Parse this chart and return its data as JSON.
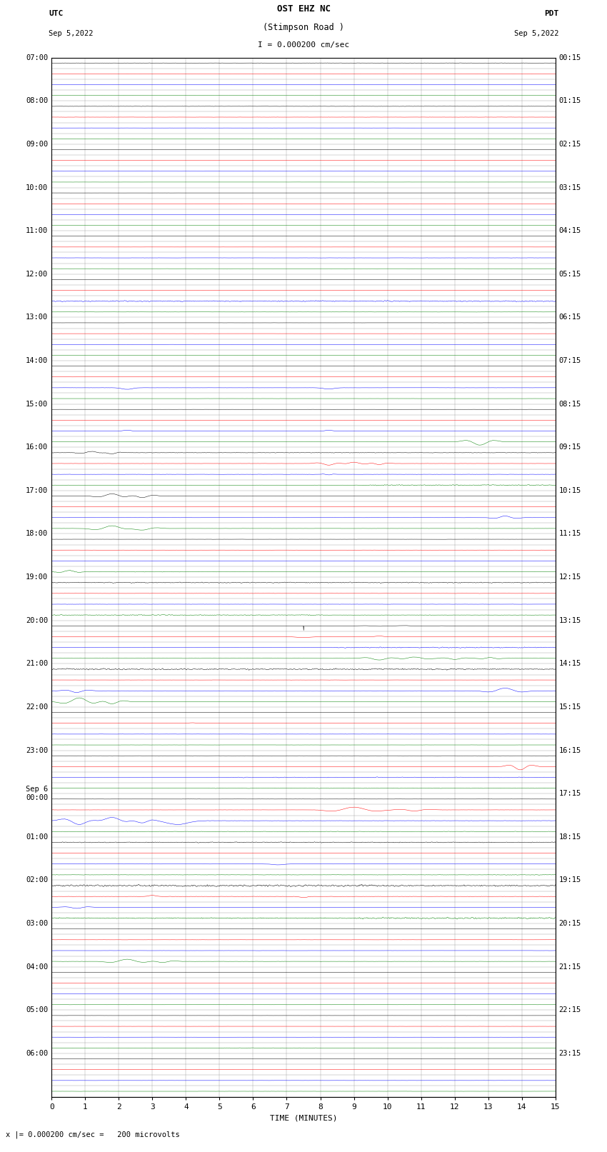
{
  "title_line1": "OST EHZ NC",
  "title_line2": "(Stimpson Road )",
  "title_line3": "I = 0.000200 cm/sec",
  "left_label_top": "UTC",
  "left_label_date": "Sep 5,2022",
  "right_label_top": "PDT",
  "right_label_date": "Sep 5,2022",
  "xlabel": "TIME (MINUTES)",
  "bottom_note": "x |= 0.000200 cm/sec =   200 microvolts",
  "utc_labels": [
    "07:00",
    "08:00",
    "09:00",
    "10:00",
    "11:00",
    "12:00",
    "13:00",
    "14:00",
    "15:00",
    "16:00",
    "17:00",
    "18:00",
    "19:00",
    "20:00",
    "21:00",
    "22:00",
    "23:00",
    "Sep 6\n00:00",
    "01:00",
    "02:00",
    "03:00",
    "04:00",
    "05:00",
    "06:00"
  ],
  "utc_row_indices": [
    0,
    4,
    8,
    12,
    16,
    20,
    24,
    28,
    32,
    36,
    40,
    44,
    48,
    52,
    56,
    60,
    64,
    68,
    72,
    76,
    80,
    84,
    88,
    92
  ],
  "pdt_labels": [
    "00:15",
    "01:15",
    "02:15",
    "03:15",
    "04:15",
    "05:15",
    "06:15",
    "07:15",
    "08:15",
    "09:15",
    "10:15",
    "11:15",
    "12:15",
    "13:15",
    "14:15",
    "15:15",
    "16:15",
    "17:15",
    "18:15",
    "19:15",
    "20:15",
    "21:15",
    "22:15",
    "23:15"
  ],
  "pdt_row_indices": [
    0,
    4,
    8,
    12,
    16,
    20,
    24,
    28,
    32,
    36,
    40,
    44,
    48,
    52,
    56,
    60,
    64,
    68,
    72,
    76,
    80,
    84,
    88,
    92
  ],
  "n_rows": 96,
  "n_pts": 1800,
  "colors_cycle": [
    "black",
    "red",
    "blue",
    "green"
  ],
  "background_color": "white",
  "grid_color": "#888888",
  "fig_width": 8.5,
  "fig_height": 16.13,
  "xmin": 0,
  "xmax": 15,
  "title_fontsize": 9,
  "label_fontsize": 8,
  "tick_fontsize": 8
}
